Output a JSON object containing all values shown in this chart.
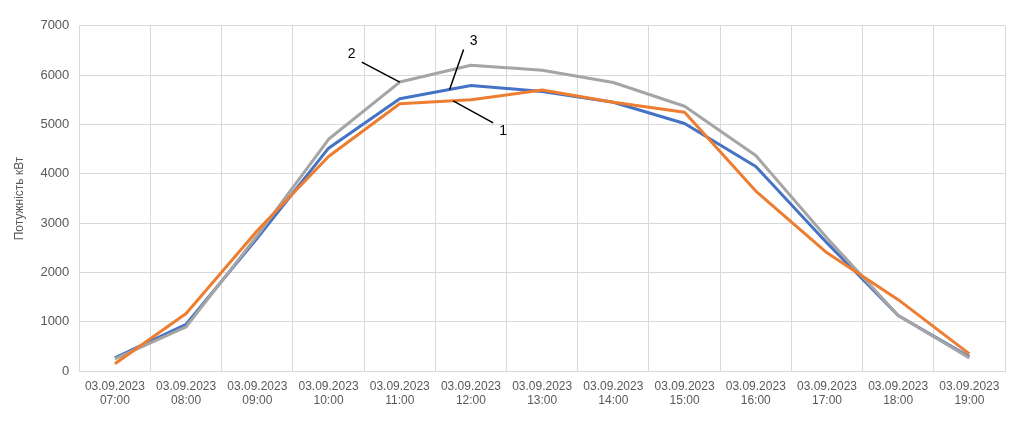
{
  "chart_data": {
    "type": "line",
    "ylabel": "Потужність кВт",
    "categories": [
      "03.09.2023 07:00",
      "03.09.2023 08:00",
      "03.09.2023 09:00",
      "03.09.2023 10:00",
      "03.09.2023 11:00",
      "03.09.2023 12:00",
      "03.09.2023 13:00",
      "03.09.2023 14:00",
      "03.09.2023 15:00",
      "03.09.2023 16:00",
      "03.09.2023 17:00",
      "03.09.2023 18:00",
      "03.09.2023 19:00"
    ],
    "series": [
      {
        "name": "1",
        "color": "#ed7d31",
        "values": [
          150,
          1170,
          2850,
          4350,
          5420,
          5500,
          5700,
          5450,
          5250,
          3650,
          2400,
          1450,
          350
        ]
      },
      {
        "name": "2",
        "color": "#a5a5a5",
        "values": [
          250,
          900,
          2750,
          4700,
          5860,
          6200,
          6100,
          5850,
          5370,
          4370,
          2700,
          1130,
          270
        ]
      },
      {
        "name": "3",
        "color": "#4472c4",
        "values": [
          270,
          950,
          2700,
          4520,
          5520,
          5790,
          5670,
          5450,
          5020,
          4150,
          2600,
          1130,
          290
        ]
      }
    ],
    "ylim": [
      0,
      7000
    ],
    "yticks": [
      0,
      1000,
      2000,
      3000,
      4000,
      5000,
      6000,
      7000
    ],
    "grid": true,
    "legend": false,
    "marker": "none",
    "line_style": "solid"
  }
}
